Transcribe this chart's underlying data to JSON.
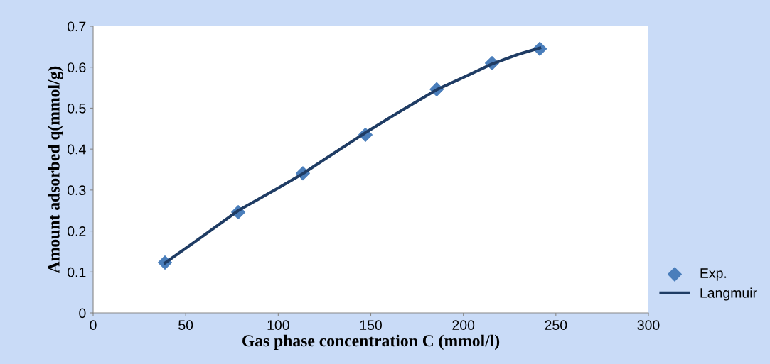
{
  "chart_data": {
    "type": "scatter",
    "xlabel": "Gas phase concentration C (mmol/l)",
    "ylabel": "Amount adsorbed q(mmol/g)",
    "xlim": [
      0,
      300
    ],
    "xticks": [
      0,
      50,
      100,
      150,
      200,
      250,
      300
    ],
    "ylim": [
      0,
      0.7
    ],
    "yticks": [
      0,
      0.1,
      0.2,
      0.3,
      0.4,
      0.5,
      0.6,
      0.7
    ],
    "grid": false,
    "legend": "right",
    "series": [
      {
        "name": "Exp.",
        "marker": "diamond",
        "color": "#4a7ebb",
        "x": [
          38.8,
          78.4,
          113.3,
          147.1,
          185.6,
          215.5,
          241.3
        ],
        "values": [
          0.123,
          0.246,
          0.341,
          0.435,
          0.546,
          0.61,
          0.645
        ]
      },
      {
        "name": "Langmuir",
        "type": "line",
        "marker": "none",
        "line_style": "solid",
        "color": "#1f3c64",
        "x": [
          38.8,
          60,
          78.4,
          100,
          113.3,
          130,
          147.1,
          165,
          185.6,
          200,
          215.5,
          230,
          241.3
        ],
        "values": [
          0.122,
          0.19,
          0.25,
          0.305,
          0.34,
          0.39,
          0.44,
          0.49,
          0.545,
          0.575,
          0.608,
          0.632,
          0.647
        ]
      }
    ]
  }
}
